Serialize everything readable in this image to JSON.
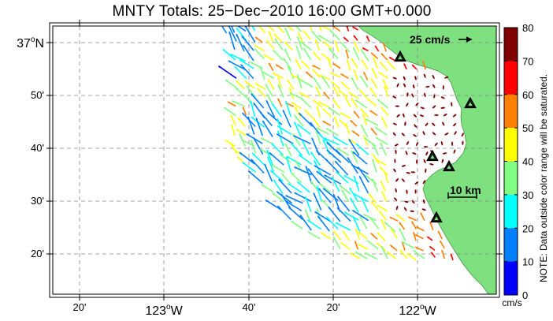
{
  "title": "MNTY Totals: 25−Dec−2010 16:00 GMT+0.000",
  "map": {
    "lat_labels": [
      {
        "text": "37°N",
        "big": true
      },
      {
        "text": "50'",
        "big": false
      },
      {
        "text": "40'",
        "big": false
      },
      {
        "text": "30'",
        "big": false
      },
      {
        "text": "20'",
        "big": false
      }
    ],
    "lon_labels": [
      {
        "text": "20'",
        "big": false
      },
      {
        "text": "123°W",
        "big": true
      },
      {
        "text": "40'",
        "big": false
      },
      {
        "text": "20'",
        "big": false
      },
      {
        "text": "122°W",
        "big": true
      }
    ],
    "scale_vector_label": "25 cm/s",
    "scale_distance_label": "10 km",
    "land_color": "#7fe07f",
    "station_icon": "triangle-station-icon",
    "stations_count": 5
  },
  "colorbar": {
    "ticks": [
      "80",
      "70",
      "60",
      "50",
      "40",
      "30",
      "20",
      "10",
      "0"
    ],
    "colors": [
      "#800000",
      "#ff0000",
      "#ff8000",
      "#ffff00",
      "#80ff80",
      "#00ffff",
      "#0080ff",
      "#0000ff"
    ],
    "units": "cm/s",
    "note": "NOTE: Data outside color range will be saturated."
  }
}
